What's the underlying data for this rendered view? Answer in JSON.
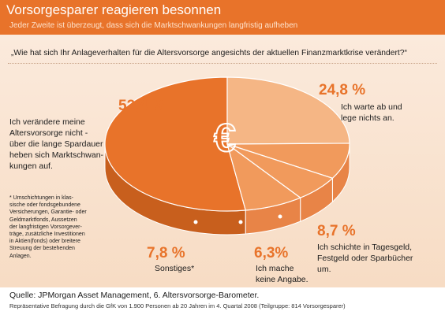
{
  "header": {
    "title": "Vorsorgesparer reagieren besonnen",
    "subtitle": "Jeder Zweite ist überzeugt, dass sich die Marktschwankungen langfristig aufheben"
  },
  "question": "„Wie hat sich Ihr Anlageverhalten für die Altersvorsorge angesichts der aktuellen Finanzmarktkrise verändert?“",
  "center_symbol": "€",
  "colors": {
    "header_orange": "#e8732a",
    "slice_main": "#e8732a",
    "slice_light": "#f5b685",
    "slice_mid": "#f19a5c",
    "background": "#fbeadc"
  },
  "chart_data": {
    "type": "pie",
    "series": [
      {
        "value": 52.4,
        "value_label": "52,4 %",
        "label": "Ich verändere meine\nAltersvorsorge nicht -\nüber die lange Spardauer\nheben sich Marktschwan-\nkungen auf."
      },
      {
        "value": 24.8,
        "value_label": "24,8 %",
        "label": "Ich warte ab und\nlege nichts an."
      },
      {
        "value": 8.7,
        "value_label": "8,7 %",
        "label": "Ich schichte in Tagesgeld,\nFestgeld oder Sparbücher\num."
      },
      {
        "value": 6.3,
        "value_label": "6,3%",
        "label": "Ich mache\nkeine Angabe."
      },
      {
        "value": 7.8,
        "value_label": "7,8 %",
        "label": "Sonstiges*"
      }
    ]
  },
  "footnote": "* Umschichtungen in klas-\nsische oder fondsgebundene\nVersicherungen, Garantie- oder\nGeldmarktfonds, Aussetzen\nder langfristigen Vorsorgever-\nträge, zusätzliche Investitionen\nin Aktien(fonds) oder breitere\nStreuung der bestehenden\nAnlagen.",
  "source": {
    "line1": "Quelle: JPMorgan Asset Management, 6. Altersvorsorge-Barometer.",
    "line2": "Repräsentative Befragung durch die GfK von 1.900 Personen ab 20 Jahren im 4. Quartal 2008 (Teilgruppe: 814 Vorsorgesparer)"
  }
}
